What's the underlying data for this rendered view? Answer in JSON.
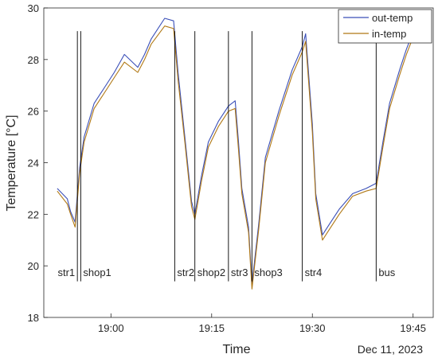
{
  "chart_data": {
    "type": "line",
    "xlabel": "Time",
    "ylabel": "Temperature [°C]",
    "date_label": "Dec 11, 2023",
    "xlim": [
      "18:50",
      "19:48"
    ],
    "ylim": [
      18,
      30
    ],
    "x_ticks": [
      "19:00",
      "19:15",
      "19:30",
      "19:45"
    ],
    "y_ticks": [
      18,
      20,
      22,
      24,
      26,
      28,
      30
    ],
    "grid": false,
    "legend_position": "top-right",
    "colors": {
      "out_temp": "#3a4fb8",
      "in_temp": "#b07814",
      "markers": "#000000",
      "axes": "#262626"
    },
    "series": [
      {
        "name": "out-temp",
        "x": [
          "18:52:00",
          "18:53:30",
          "18:54:00",
          "18:54:40",
          "18:55:20",
          "18:56:00",
          "18:57:30",
          "18:59:00",
          "19:00:30",
          "19:02:00",
          "19:04:00",
          "19:05:00",
          "19:06:00",
          "19:08:00",
          "19:09:20",
          "19:10:00",
          "19:11:00",
          "19:12:00",
          "19:12:30",
          "19:13:30",
          "19:14:30",
          "19:16:00",
          "19:17:30",
          "19:18:30",
          "19:19:00",
          "19:19:30",
          "19:20:30",
          "19:21:00",
          "19:22:00",
          "19:23:00",
          "19:25:00",
          "19:27:00",
          "19:28:30",
          "19:29:00",
          "19:30:00",
          "19:30:30",
          "19:31:30",
          "19:32:30",
          "19:34:00",
          "19:36:00",
          "19:38:00",
          "19:39:30",
          "19:40:30",
          "19:41:30",
          "19:43:00",
          "19:44:00",
          "19:45:30"
        ],
        "y": [
          23.0,
          22.6,
          22.1,
          21.7,
          23.8,
          25.0,
          26.3,
          26.9,
          27.5,
          28.2,
          27.7,
          28.2,
          28.8,
          29.6,
          29.5,
          27.5,
          25.0,
          22.5,
          22.0,
          23.5,
          24.8,
          25.6,
          26.2,
          26.4,
          24.8,
          23.0,
          21.5,
          19.3,
          21.6,
          24.2,
          26.0,
          27.6,
          28.5,
          29.0,
          25.5,
          22.8,
          21.2,
          21.6,
          22.2,
          22.8,
          23.0,
          23.2,
          24.8,
          26.3,
          27.6,
          28.4,
          29.4
        ]
      },
      {
        "name": "in-temp",
        "x": [
          "18:52:00",
          "18:53:30",
          "18:54:00",
          "18:54:40",
          "18:55:20",
          "18:56:00",
          "18:57:30",
          "18:59:00",
          "19:00:30",
          "19:02:00",
          "19:04:00",
          "19:05:00",
          "19:06:00",
          "19:08:00",
          "19:09:20",
          "19:10:00",
          "19:11:00",
          "19:12:00",
          "19:12:30",
          "19:13:30",
          "19:14:30",
          "19:16:00",
          "19:17:30",
          "19:18:30",
          "19:19:00",
          "19:19:30",
          "19:20:30",
          "19:21:00",
          "19:22:00",
          "19:23:00",
          "19:25:00",
          "19:27:00",
          "19:28:30",
          "19:29:00",
          "19:30:00",
          "19:30:30",
          "19:31:30",
          "19:32:30",
          "19:34:00",
          "19:36:00",
          "19:38:00",
          "19:39:30",
          "19:40:30",
          "19:41:30",
          "19:43:00",
          "19:44:00",
          "19:45:30"
        ],
        "y": [
          22.9,
          22.4,
          22.0,
          21.5,
          23.6,
          24.8,
          26.1,
          26.7,
          27.3,
          27.9,
          27.5,
          28.0,
          28.6,
          29.3,
          29.2,
          27.2,
          24.8,
          22.3,
          21.8,
          23.3,
          24.6,
          25.4,
          26.0,
          26.1,
          24.5,
          22.8,
          21.3,
          19.1,
          21.4,
          24.0,
          25.8,
          27.4,
          28.3,
          28.7,
          25.2,
          22.6,
          21.0,
          21.4,
          22.0,
          22.7,
          22.9,
          23.0,
          24.6,
          26.1,
          27.4,
          28.2,
          29.2
        ]
      }
    ],
    "markers": [
      {
        "label": "str1",
        "x": "18:55:00",
        "label_side": "left"
      },
      {
        "label": "shop1",
        "x": "18:55:30",
        "label_side": "right"
      },
      {
        "label": "str2",
        "x": "19:09:30",
        "label_side": "right"
      },
      {
        "label": "shop2",
        "x": "19:12:30",
        "label_side": "right"
      },
      {
        "label": "str3",
        "x": "19:17:30",
        "label_side": "right"
      },
      {
        "label": "shop3",
        "x": "19:21:00",
        "label_side": "right"
      },
      {
        "label": "str4",
        "x": "19:28:30",
        "label_side": "right"
      },
      {
        "label": "bus",
        "x": "19:39:30",
        "label_side": "right"
      }
    ],
    "marker_top": 29.1,
    "marker_bottom": 19.4
  }
}
